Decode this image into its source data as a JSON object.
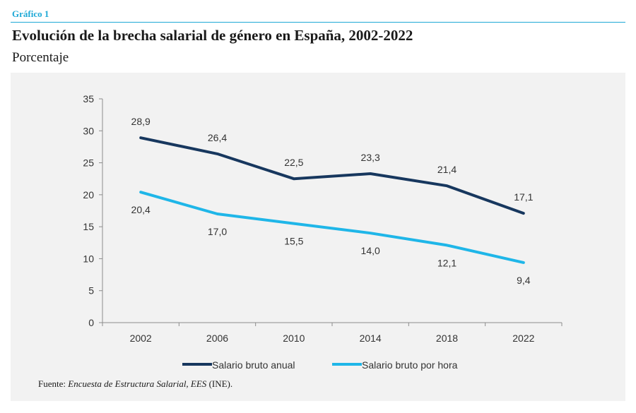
{
  "header": {
    "kicker": "Gráfico 1",
    "title": "Evolución de la brecha salarial de género en España, 2002-2022",
    "subtitle": "Porcentaje"
  },
  "source": {
    "prefix": "Fuente: ",
    "italic": "Encuesta de Estructura Salarial, EES",
    "suffix": " (INE)."
  },
  "chart_data": {
    "type": "line",
    "x": [
      "2002",
      "2006",
      "2010",
      "2014",
      "2018",
      "2022"
    ],
    "ylim": [
      0,
      35
    ],
    "yticks": [
      "0",
      "5",
      "10",
      "15",
      "20",
      "25",
      "30",
      "35"
    ],
    "grid": false,
    "legend": "bottom",
    "series": [
      {
        "name": "Salario bruto anual",
        "color": "#17375e",
        "values": [
          28.9,
          26.4,
          22.5,
          23.3,
          21.4,
          17.1
        ],
        "labels": [
          "28,9",
          "26,4",
          "22,5",
          "23,3",
          "21,4",
          "17,1"
        ]
      },
      {
        "name": "Salario bruto por hora",
        "color": "#1fb6e8",
        "values": [
          20.4,
          17.0,
          15.5,
          14.0,
          12.1,
          9.4
        ],
        "labels": [
          "20,4",
          "17,0",
          "15,5",
          "14,0",
          "12,1",
          "9,4"
        ]
      }
    ]
  }
}
